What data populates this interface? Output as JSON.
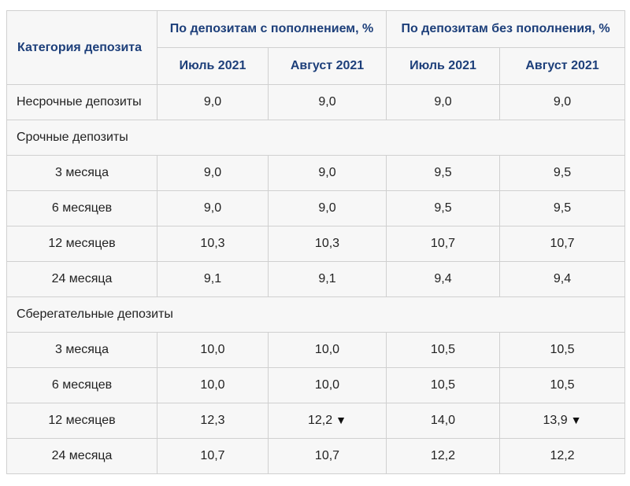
{
  "header": {
    "category": "Категория депозита",
    "group_with_topup": "По депозитам с пополнением, %",
    "group_without_topup": "По депозитам без пополнения, %",
    "month_1": "Июль 2021",
    "month_2": "Август 2021",
    "month_3": "Июль 2021",
    "month_4": "Август 2021"
  },
  "demand": {
    "label": "Несрочные депозиты",
    "values": [
      "9,0",
      "9,0",
      "9,0",
      "9,0"
    ]
  },
  "term_section": "Срочные депозиты",
  "term_rows": [
    {
      "label": "3 месяца",
      "values": [
        "9,0",
        "9,0",
        "9,5",
        "9,5"
      ]
    },
    {
      "label": "6 месяцев",
      "values": [
        "9,0",
        "9,0",
        "9,5",
        "9,5"
      ]
    },
    {
      "label": "12 месяцев",
      "values": [
        "10,3",
        "10,3",
        "10,7",
        "10,7"
      ]
    },
    {
      "label": "24 месяца",
      "values": [
        "9,1",
        "9,1",
        "9,4",
        "9,4"
      ]
    }
  ],
  "savings_section": "Сберегательные депозиты",
  "savings_rows": [
    {
      "label": "3 месяца",
      "values": [
        "10,0",
        "10,0",
        "10,5",
        "10,5"
      ]
    },
    {
      "label": "6 месяцев",
      "values": [
        "10,0",
        "10,0",
        "10,5",
        "10,5"
      ]
    },
    {
      "label": "12 месяцев",
      "values": [
        "12,3",
        "12,2",
        "14,0",
        "13,9"
      ]
    },
    {
      "label": "24 месяца",
      "values": [
        "10,7",
        "10,7",
        "12,2",
        "12,2"
      ]
    }
  ],
  "decrease_marker": "▼"
}
